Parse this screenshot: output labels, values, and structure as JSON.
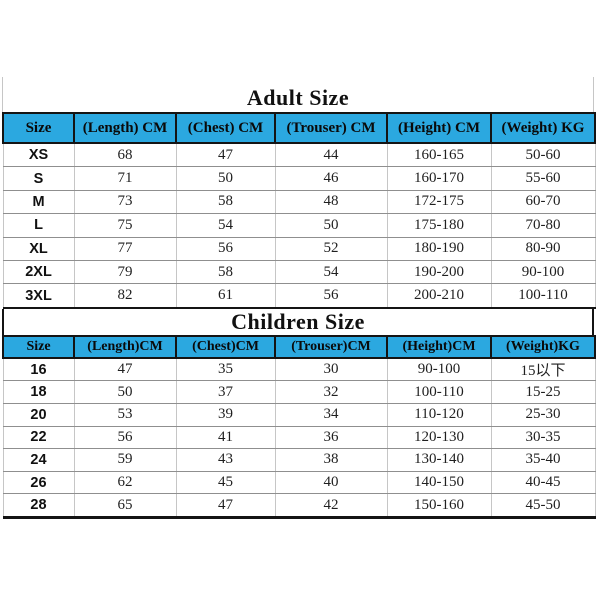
{
  "page": {
    "background": "#ffffff"
  },
  "adult_table": {
    "title": "Adult Size",
    "columns": [
      "Size",
      "(Length) CM",
      "(Chest) CM",
      "(Trouser) CM",
      "(Height) CM",
      "(Weight) KG"
    ],
    "rows": [
      [
        "XS",
        "68",
        "47",
        "44",
        "160-165",
        "50-60"
      ],
      [
        "S",
        "71",
        "50",
        "46",
        "160-170",
        "55-60"
      ],
      [
        "M",
        "73",
        "58",
        "48",
        "172-175",
        "60-70"
      ],
      [
        "L",
        "75",
        "54",
        "50",
        "175-180",
        "70-80"
      ],
      [
        "XL",
        "77",
        "56",
        "52",
        "180-190",
        "80-90"
      ],
      [
        "2XL",
        "79",
        "58",
        "54",
        "190-200",
        "90-100"
      ],
      [
        "3XL",
        "82",
        "61",
        "56",
        "200-210",
        "100-110"
      ]
    ]
  },
  "children_table": {
    "title": "Children Size",
    "columns": [
      "Size",
      "(Length)CM",
      "(Chest)CM",
      "(Trouser)CM",
      "(Height)CM",
      "(Weight)KG"
    ],
    "rows": [
      [
        "16",
        "47",
        "35",
        "30",
        "90-100",
        "15以下"
      ],
      [
        "18",
        "50",
        "37",
        "32",
        "100-110",
        "15-25"
      ],
      [
        "20",
        "53",
        "39",
        "34",
        "110-120",
        "25-30"
      ],
      [
        "22",
        "56",
        "41",
        "36",
        "120-130",
        "30-35"
      ],
      [
        "24",
        "59",
        "43",
        "38",
        "130-140",
        "35-40"
      ],
      [
        "26",
        "62",
        "45",
        "40",
        "140-150",
        "40-45"
      ],
      [
        "28",
        "65",
        "47",
        "42",
        "150-160",
        "45-50"
      ]
    ]
  },
  "colors": {
    "header_bg": "#2ba8e0",
    "border_dark": "#141414",
    "grid_horizontal": "#8f8f8f",
    "grid_vertical": "#c6c6c6",
    "body_text": "#1f1f1f"
  }
}
